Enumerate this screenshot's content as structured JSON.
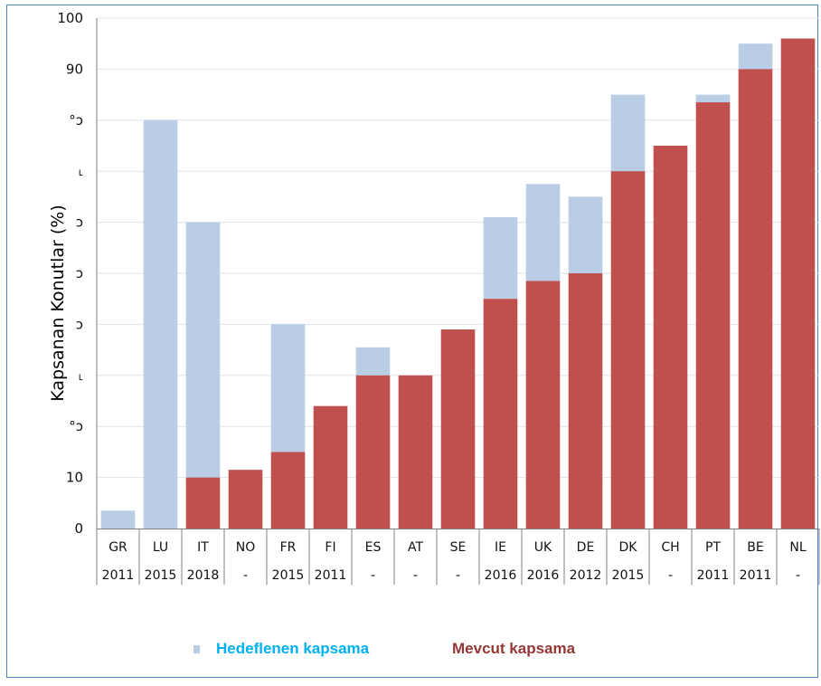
{
  "chart_data": {
    "type": "bar",
    "stacked": true,
    "ylabel": "Kapsanan Konutlar (%)",
    "ylim": [
      0,
      100
    ],
    "y_tick_labels": [
      "0",
      "10",
      "°ɔ",
      "˪",
      "ɔ",
      "ɔ",
      "ɔ",
      "˪",
      "°ɔ",
      "90",
      "100"
    ],
    "grid": true,
    "categories": [
      "GR",
      "LU",
      "IT",
      "NO",
      "FR",
      "FI",
      "ES",
      "AT",
      "SE",
      "IE",
      "UK",
      "DE",
      "DK",
      "CH",
      "PT",
      "BE",
      "NL"
    ],
    "category_years": [
      "2011",
      "2015",
      "2018",
      "-",
      "2015",
      "2011",
      "-",
      "-",
      "-",
      "2016",
      "2016",
      "2012",
      "2015",
      "-",
      "2011",
      "2011",
      "-"
    ],
    "series": [
      {
        "name": "Mevcut kapsama",
        "color": "#c0504d",
        "values": [
          0,
          0,
          10,
          11.5,
          15,
          24,
          30,
          30,
          39,
          45,
          48.5,
          50,
          70,
          75,
          83.5,
          90,
          96
        ]
      },
      {
        "name": "Hedeflenen kapsama",
        "color": "#b9cde5",
        "values": [
          3.5,
          80,
          50,
          0,
          25,
          0,
          5.5,
          0,
          0,
          16,
          19,
          15,
          15,
          0,
          1.5,
          5,
          0
        ]
      }
    ],
    "legend_placement": "bottom"
  },
  "legend": {
    "items": [
      {
        "label": "Hedeflenen kapsama",
        "color": "#00b0f0",
        "swatch_color": "#b9cde5"
      },
      {
        "label": "Mevcut kapsama",
        "color": "#953735",
        "swatch_color": "#953735"
      }
    ]
  },
  "colors": {
    "frame_border": "#4f81bd",
    "grid": "#dbe5f1"
  }
}
